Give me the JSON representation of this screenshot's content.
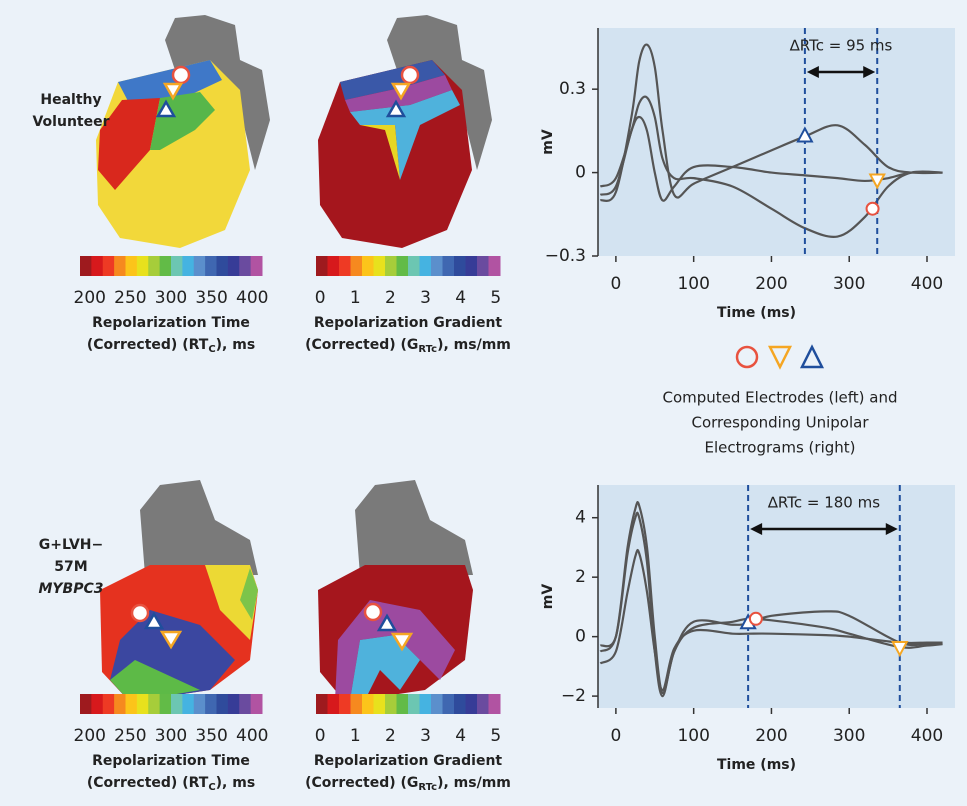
{
  "colormap": [
    "#9e1a1e",
    "#d7191c",
    "#ee3a24",
    "#f6891f",
    "#fcc41a",
    "#e8e11d",
    "#a6cd3a",
    "#62bb47",
    "#6cc6b2",
    "#45b3e1",
    "#5b8fcc",
    "#3f67b1",
    "#2f4b9c",
    "#373c97",
    "#6a4b9f",
    "#b153a2"
  ],
  "rows": [
    {
      "label": [
        "Healthy",
        "Volunteer"
      ],
      "colorbars": [
        {
          "lim": [
            188,
            412
          ],
          "ticks": [
            200,
            250,
            300,
            350,
            400
          ],
          "title": "Repolarization Time",
          "title2": "(Corrected) (RT",
          "sub": "C",
          "title2_end": "), ms"
        },
        {
          "lim": [
            -0.12,
            5.12
          ],
          "ticks": [
            0,
            1,
            2,
            3,
            4,
            5
          ],
          "title": "Repolarization Gradient",
          "title2": "(Corrected) (G",
          "sub": "RTc",
          "title2_end": "), ms/mm"
        }
      ]
    },
    {
      "label": [
        "G+LVH−",
        "57M",
        "MYBPC3"
      ],
      "colorbars": [
        {
          "lim": [
            188,
            412
          ],
          "ticks": [
            200,
            250,
            300,
            350,
            400
          ],
          "title": "Repolarization Time",
          "title2": "(Corrected) (RT",
          "sub": "C",
          "title2_end": "), ms"
        },
        {
          "lim": [
            -0.12,
            5.12
          ],
          "ticks": [
            0,
            1,
            2,
            3,
            4,
            5
          ],
          "title": "Repolarization Gradient",
          "title2": "(Corrected) (G",
          "sub": "RTc",
          "title2_end": "), ms/mm"
        }
      ]
    }
  ],
  "legend_caption": [
    "Computed Electrodes (left) and",
    "Corresponding Unipolar",
    "Electrograms (right)"
  ],
  "chart_data": [
    {
      "type": "line",
      "xlabel": "Time (ms)",
      "ylabel": "mV",
      "xlim": [
        -23,
        436
      ],
      "ylim": [
        -0.3,
        0.52
      ],
      "xticks": [
        0,
        100,
        200,
        300,
        400
      ],
      "yticks": [
        {
          "value": -0.3,
          "label": "−0.3"
        },
        0,
        0.3
      ],
      "x": [
        -20,
        0,
        20,
        30,
        40,
        50,
        60,
        75,
        100,
        150,
        200,
        243,
        285,
        320,
        350,
        380,
        420
      ],
      "series": [
        {
          "color": "#555555",
          "values": [
            -0.1,
            -0.07,
            0.2,
            0.4,
            0.46,
            0.38,
            0.15,
            -0.08,
            -0.04,
            0.02,
            0.08,
            0.13,
            0.17,
            0.1,
            0.02,
            0,
            0
          ]
        },
        {
          "color": "#555555",
          "values": [
            -0.05,
            -0.02,
            0.15,
            0.25,
            0.27,
            0.2,
            0.05,
            -0.02,
            -0.02,
            -0.05,
            -0.13,
            -0.2,
            -0.23,
            -0.16,
            -0.05,
            0,
            0
          ]
        },
        {
          "color": "#555555",
          "values": [
            -0.08,
            -0.05,
            0.15,
            0.2,
            0.15,
            0,
            -0.1,
            -0.05,
            0.02,
            0.02,
            0,
            -0.01,
            -0.02,
            -0.03,
            -0.02,
            0,
            0
          ]
        }
      ],
      "vlines": [
        243,
        336
      ],
      "vline_color": "#1f4e9c",
      "annotation": "∆RTc = 95 ms",
      "markers": [
        {
          "shape": "triangle",
          "color": "#1f4e9c",
          "x": 243,
          "y": 0.13
        },
        {
          "shape": "inverted-triangle",
          "color": "#f5a623",
          "x": 336,
          "y": -0.025
        },
        {
          "shape": "circle",
          "color": "#e8523f",
          "x": 330,
          "y": -0.13
        }
      ]
    },
    {
      "type": "line",
      "xlabel": "Time (ms)",
      "ylabel": "mV",
      "xlim": [
        -23,
        436
      ],
      "ylim": [
        -2.4,
        5.1
      ],
      "xticks": [
        0,
        100,
        200,
        300,
        400
      ],
      "yticks": [
        {
          "value": -2,
          "label": "−2"
        },
        0,
        2,
        4
      ],
      "x": [
        -20,
        0,
        15,
        25,
        30,
        40,
        50,
        60,
        75,
        100,
        150,
        170,
        200,
        270,
        300,
        365,
        400,
        420
      ],
      "series": [
        {
          "color": "#555555",
          "values": [
            -0.5,
            0,
            3,
            4.3,
            4.4,
            3,
            0,
            -1.9,
            -0.5,
            0.5,
            0.4,
            0.45,
            0.7,
            0.85,
            0.7,
            -0.2,
            -0.25,
            -0.25
          ]
        },
        {
          "color": "#555555",
          "values": [
            -0.3,
            0,
            2.8,
            4,
            4,
            2.5,
            -0.5,
            -2,
            -0.5,
            0.3,
            0.5,
            0.6,
            0.55,
            0.3,
            0.1,
            -0.35,
            -0.3,
            -0.25
          ]
        },
        {
          "color": "#555555",
          "values": [
            -0.9,
            -0.5,
            1.5,
            2.7,
            2.8,
            1.5,
            -0.5,
            -1.8,
            -0.4,
            0.2,
            0.1,
            0.1,
            0.1,
            0.05,
            0,
            -0.2,
            -0.2,
            -0.2
          ]
        }
      ],
      "vlines": [
        170,
        365
      ],
      "vline_color": "#1f4e9c",
      "annotation": "∆RTc = 180 ms",
      "markers": [
        {
          "shape": "triangle",
          "color": "#1f4e9c",
          "x": 170,
          "y": 0.45
        },
        {
          "shape": "circle",
          "color": "#e8523f",
          "x": 180,
          "y": 0.6
        },
        {
          "shape": "inverted-triangle",
          "color": "#f5a623",
          "x": 365,
          "y": -0.35
        }
      ]
    }
  ]
}
